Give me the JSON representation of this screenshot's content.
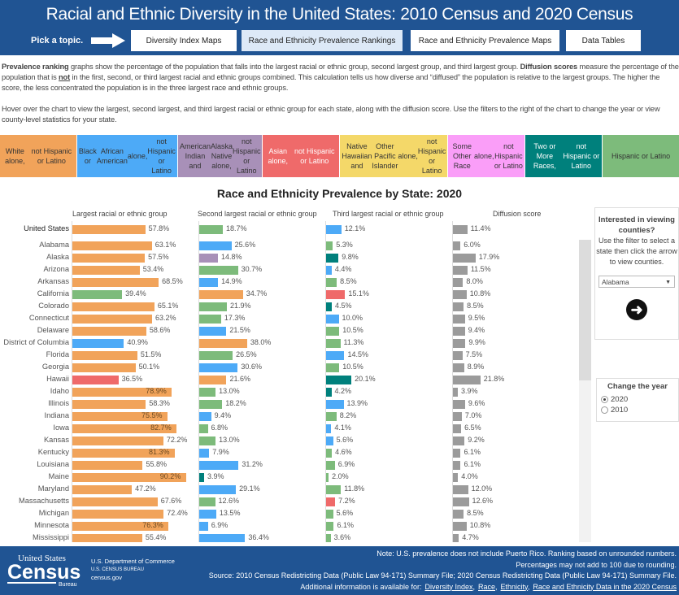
{
  "header": {
    "title": "Racial and Ethnic Diversity in the United States: 2010 Census and 2020 Census",
    "pick_label": "Pick a topic.",
    "tabs": [
      {
        "label": "Diversity Index Maps",
        "active": false
      },
      {
        "label": "Race and Ethnicity Prevalence Rankings",
        "active": true
      },
      {
        "label": "Race and Ethnicity Prevalence Maps",
        "active": false
      },
      {
        "label": "Data Tables",
        "active": false
      }
    ]
  },
  "intro": {
    "p1_b1": "Prevalence ranking",
    "p1_t1": " graphs show the percentage of the population that falls into the largest racial or ethnic group, second largest group, and third largest group. ",
    "p1_b2": "Diffusion scores",
    "p1_t2": " measure the percentage of the population that is ",
    "p1_u": "not",
    "p1_t3": " in the first, second, or third largest racial and ethnic groups combined. This calculation tells us how diverse and “diffused” the population is relative to the largest groups. The higher the score, the less concentrated the population is in the three largest race and ethnic groups.",
    "p2": "Hover over the chart to view the largest, second largest, and third largest racial or ethnic group for each state, along with the diffusion score. Use the filters to the right of the chart to change the year or view county-level statistics for your state."
  },
  "legend": [
    {
      "key": "white",
      "lines": [
        "White alone,",
        "not Hispanic or Latino"
      ],
      "color": "#F1A35A",
      "text": "#333"
    },
    {
      "key": "black",
      "lines": [
        "Black or",
        "African American",
        "alone,",
        "not Hispanic or Latino"
      ],
      "color": "#4DAAF7",
      "text": "#333"
    },
    {
      "key": "aian",
      "lines": [
        "American Indian and",
        "Alaska Native alone,",
        "not Hispanic or Latino"
      ],
      "color": "#A890B8",
      "text": "#333"
    },
    {
      "key": "asian",
      "lines": [
        "Asian alone,",
        "not Hispanic or Latino"
      ],
      "color": "#EF6A6A",
      "text": "#fff"
    },
    {
      "key": "nhpi",
      "lines": [
        "Native Hawaiian and",
        "Other Pacific Islander",
        "alone,",
        "not Hispanic or Latino"
      ],
      "color": "#F4D869",
      "text": "#333"
    },
    {
      "key": "other",
      "lines": [
        "Some Other Race",
        "alone,",
        "not Hispanic or Latino"
      ],
      "color": "#FA9EF8",
      "text": "#333"
    },
    {
      "key": "two",
      "lines": [
        "Two or More Races,",
        "not Hispanic or Latino"
      ],
      "color": "#00807C",
      "text": "#fff"
    },
    {
      "key": "hisp",
      "lines": [
        "Hispanic or Latino"
      ],
      "color": "#7DBB7B",
      "text": "#333"
    }
  ],
  "chart_data": {
    "type": "bar",
    "title": "Race and Ethnicity Prevalence by State: 2020",
    "columns": [
      "Largest racial or ethnic group",
      "Second largest racial or ethnic group",
      "Third largest racial or ethnic group",
      "Diffusion score"
    ],
    "diffusion_color": "#9B9B9B",
    "rows": [
      [
        "United States",
        "white",
        57.8,
        "hisp",
        18.7,
        "black",
        12.1,
        11.4
      ],
      [
        "Alabama",
        "white",
        63.1,
        "black",
        25.6,
        "hisp",
        5.3,
        6.0
      ],
      [
        "Alaska",
        "white",
        57.5,
        "aian",
        14.8,
        "two",
        9.8,
        17.9
      ],
      [
        "Arizona",
        "white",
        53.4,
        "hisp",
        30.7,
        "black",
        4.4,
        11.5
      ],
      [
        "Arkansas",
        "white",
        68.5,
        "black",
        14.9,
        "hisp",
        8.5,
        8.0
      ],
      [
        "California",
        "hisp",
        39.4,
        "white",
        34.7,
        "asian",
        15.1,
        10.8
      ],
      [
        "Colorado",
        "white",
        65.1,
        "hisp",
        21.9,
        "two",
        4.5,
        8.5
      ],
      [
        "Connecticut",
        "white",
        63.2,
        "hisp",
        17.3,
        "black",
        10.0,
        9.5
      ],
      [
        "Delaware",
        "white",
        58.6,
        "black",
        21.5,
        "hisp",
        10.5,
        9.4
      ],
      [
        "District of Columbia",
        "black",
        40.9,
        "white",
        38.0,
        "hisp",
        11.3,
        9.9
      ],
      [
        "Florida",
        "white",
        51.5,
        "hisp",
        26.5,
        "black",
        14.5,
        7.5
      ],
      [
        "Georgia",
        "white",
        50.1,
        "black",
        30.6,
        "hisp",
        10.5,
        8.9
      ],
      [
        "Hawaii",
        "asian",
        36.5,
        "white",
        21.6,
        "two",
        20.1,
        21.8
      ],
      [
        "Idaho",
        "white",
        78.9,
        "hisp",
        13.0,
        "two",
        4.2,
        3.9
      ],
      [
        "Illinois",
        "white",
        58.3,
        "hisp",
        18.2,
        "black",
        13.9,
        9.6
      ],
      [
        "Indiana",
        "white",
        75.5,
        "black",
        9.4,
        "hisp",
        8.2,
        7.0
      ],
      [
        "Iowa",
        "white",
        82.7,
        "hisp",
        6.8,
        "black",
        4.1,
        6.5
      ],
      [
        "Kansas",
        "white",
        72.2,
        "hisp",
        13.0,
        "black",
        5.6,
        9.2
      ],
      [
        "Kentucky",
        "white",
        81.3,
        "black",
        7.9,
        "hisp",
        4.6,
        6.1
      ],
      [
        "Louisiana",
        "white",
        55.8,
        "black",
        31.2,
        "hisp",
        6.9,
        6.1
      ],
      [
        "Maine",
        "white",
        90.2,
        "two",
        3.9,
        "hisp",
        2.0,
        4.0
      ],
      [
        "Maryland",
        "white",
        47.2,
        "black",
        29.1,
        "hisp",
        11.8,
        12.0
      ],
      [
        "Massachusetts",
        "white",
        67.6,
        "hisp",
        12.6,
        "asian",
        7.2,
        12.6
      ],
      [
        "Michigan",
        "white",
        72.4,
        "black",
        13.5,
        "hisp",
        5.6,
        8.5
      ],
      [
        "Minnesota",
        "white",
        76.3,
        "black",
        6.9,
        "hisp",
        6.1,
        10.8
      ],
      [
        "Mississippi",
        "white",
        55.4,
        "black",
        36.4,
        "hisp",
        3.6,
        4.7
      ]
    ]
  },
  "panel": {
    "heading": "Interested in viewing counties?",
    "text": "Use the filter to select a state then click the arrow to view counties.",
    "state_value": "Alabama"
  },
  "year": {
    "heading": "Change the year",
    "options": [
      "2020",
      "2010"
    ],
    "selected": "2020"
  },
  "footer": {
    "logo_text": "United States Census Bureau",
    "dept": "U.S. Department of Commerce",
    "bureau": "U.S. CENSUS BUREAU",
    "site": "census.gov",
    "note1": "Note: U.S. prevalence does not include Puerto Rico. Ranking based on unrounded numbers.",
    "note2": "Percentages may not add to 100 due to rounding.",
    "source": "Source: 2010 Census Redistricting Data (Public Law 94-171) Summary File; 2020 Census Redistricting Data (Public Law 94-171) Summary File.",
    "additional": "Additional information is available for:",
    "links": [
      "Diversity Index,",
      "Race,",
      "Ethnicity,",
      "Race and Ethnicity Data in the 2020 Census"
    ]
  }
}
